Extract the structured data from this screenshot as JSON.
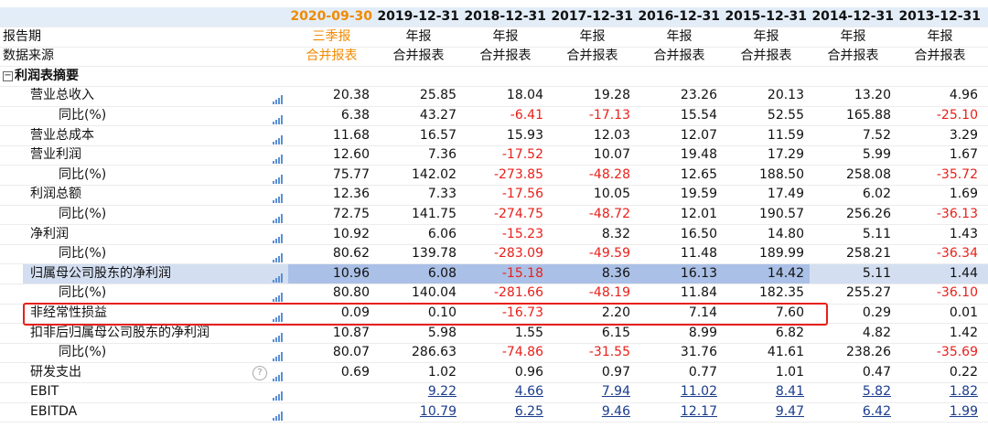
{
  "header": {
    "dates": [
      "2020-09-30",
      "2019-12-31",
      "2018-12-31",
      "2017-12-31",
      "2016-12-31",
      "2015-12-31",
      "2014-12-31",
      "2013-12-31"
    ],
    "period_label": "报告期",
    "periods": [
      "三季报",
      "年报",
      "年报",
      "年报",
      "年报",
      "年报",
      "年报",
      "年报"
    ],
    "source_label": "数据来源",
    "sources": [
      "合并报表",
      "合并报表",
      "合并报表",
      "合并报表",
      "合并报表",
      "合并报表",
      "合并报表",
      "合并报表"
    ]
  },
  "section": "利润表摘要",
  "rows": [
    {
      "label": "营业总收入",
      "level": 1,
      "values": [
        "20.38",
        "25.85",
        "18.04",
        "19.28",
        "23.26",
        "20.13",
        "13.20",
        "4.96"
      ]
    },
    {
      "label": "同比(%)",
      "level": 2,
      "values": [
        "6.38",
        "43.27",
        "-6.41",
        "-17.13",
        "15.54",
        "52.55",
        "165.88",
        "-25.10"
      ]
    },
    {
      "label": "营业总成本",
      "level": 1,
      "values": [
        "11.68",
        "16.57",
        "15.93",
        "12.03",
        "12.07",
        "11.59",
        "7.52",
        "3.29"
      ]
    },
    {
      "label": "营业利润",
      "level": 1,
      "values": [
        "12.60",
        "7.36",
        "-17.52",
        "10.07",
        "19.48",
        "17.29",
        "5.99",
        "1.67"
      ]
    },
    {
      "label": "同比(%)",
      "level": 2,
      "values": [
        "75.77",
        "142.02",
        "-273.85",
        "-48.28",
        "12.65",
        "188.50",
        "258.08",
        "-35.72"
      ]
    },
    {
      "label": "利润总额",
      "level": 1,
      "values": [
        "12.36",
        "7.33",
        "-17.56",
        "10.05",
        "19.59",
        "17.49",
        "6.02",
        "1.69"
      ]
    },
    {
      "label": "同比(%)",
      "level": 2,
      "values": [
        "72.75",
        "141.75",
        "-274.75",
        "-48.72",
        "12.01",
        "190.57",
        "256.26",
        "-36.13"
      ]
    },
    {
      "label": "净利润",
      "level": 1,
      "values": [
        "10.92",
        "6.06",
        "-15.23",
        "8.32",
        "16.50",
        "14.80",
        "5.11",
        "1.43"
      ]
    },
    {
      "label": "同比(%)",
      "level": 2,
      "values": [
        "80.62",
        "139.78",
        "-283.09",
        "-49.59",
        "11.48",
        "189.99",
        "258.21",
        "-36.34"
      ]
    },
    {
      "label": "归属母公司股东的净利润",
      "level": 1,
      "highlighted": true,
      "values": [
        "10.96",
        "6.08",
        "-15.18",
        "8.36",
        "16.13",
        "14.42",
        "5.11",
        "1.44"
      ]
    },
    {
      "label": "同比(%)",
      "level": 2,
      "values": [
        "80.80",
        "140.04",
        "-281.66",
        "-48.19",
        "11.84",
        "182.35",
        "255.27",
        "-36.10"
      ]
    },
    {
      "label": "非经常性损益",
      "level": 1,
      "boxed": true,
      "values": [
        "0.09",
        "0.10",
        "-16.73",
        "2.20",
        "7.14",
        "7.60",
        "0.29",
        "0.01"
      ]
    },
    {
      "label": "扣非后归属母公司股东的净利润",
      "level": 1,
      "values": [
        "10.87",
        "5.98",
        "1.55",
        "6.15",
        "8.99",
        "6.82",
        "4.82",
        "1.42"
      ]
    },
    {
      "label": "同比(%)",
      "level": 2,
      "values": [
        "80.07",
        "286.63",
        "-74.86",
        "-31.55",
        "31.76",
        "41.61",
        "238.26",
        "-35.69"
      ]
    },
    {
      "label": "研发支出",
      "level": 1,
      "help_icon": true,
      "values": [
        "0.69",
        "1.02",
        "0.96",
        "0.97",
        "0.77",
        "1.01",
        "0.47",
        "0.22"
      ]
    },
    {
      "label": "EBIT",
      "level": 1,
      "link": true,
      "values": [
        null,
        "9.22",
        "4.66",
        "7.94",
        "11.02",
        "8.41",
        "5.82",
        "1.82"
      ]
    },
    {
      "label": "EBITDA",
      "level": 1,
      "link": true,
      "values": [
        null,
        "10.79",
        "6.25",
        "9.46",
        "12.17",
        "9.47",
        "6.42",
        "1.99"
      ]
    }
  ]
}
